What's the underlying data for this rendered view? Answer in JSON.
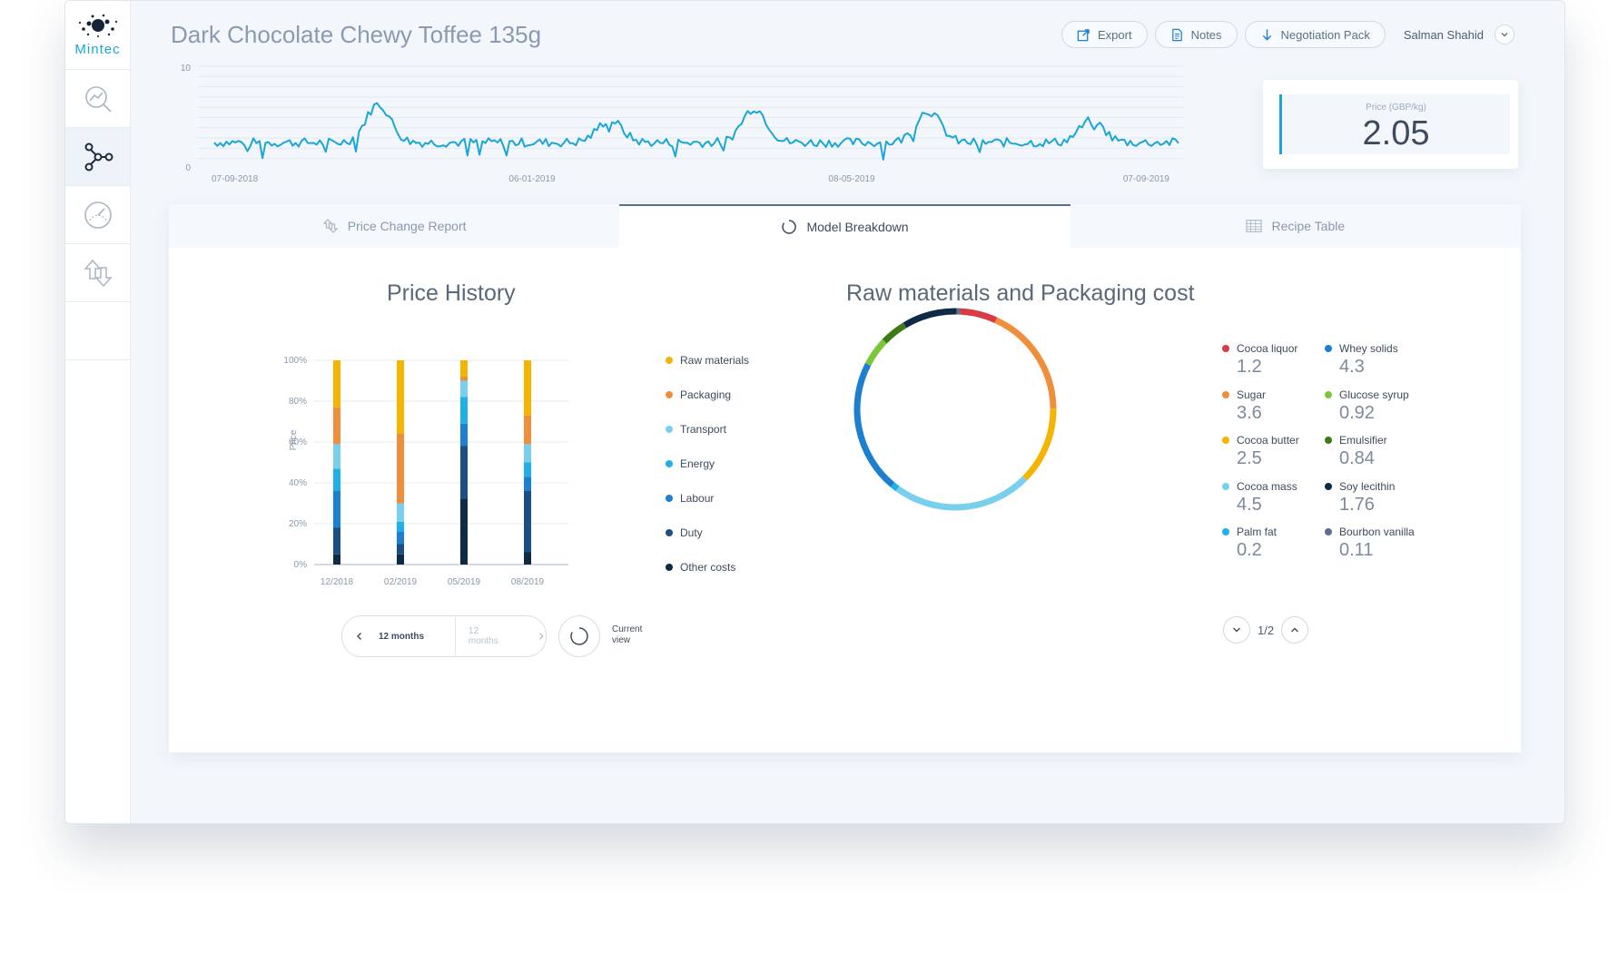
{
  "app": {
    "logo_text": "Mintec"
  },
  "header": {
    "title": "Dark Chocolate Chewy Toffee 135g",
    "buttons": {
      "export": "Export",
      "notes": "Notes",
      "negotiation": "Negotiation Pack"
    },
    "user": "Salman Shahid"
  },
  "sparkline": {
    "y_top": "10",
    "y_bottom": "0",
    "x_labels": [
      "07-09-2018",
      "06-01-2019",
      "08-05-2019",
      "07-09-2019"
    ],
    "color": "#1aa6d6"
  },
  "price_card": {
    "label": "Price (GBP/kg)",
    "value": "2.05"
  },
  "tabs": [
    {
      "label": "Price Change Report",
      "icon": "price-change-icon"
    },
    {
      "label": "Model Breakdown",
      "icon": "spinner-icon"
    },
    {
      "label": "Recipe Table",
      "icon": "table-icon"
    }
  ],
  "price_history": {
    "title": "Price History",
    "period_primary": "12 months",
    "period_secondary": "12 months",
    "current_view": "Current view",
    "legend": [
      {
        "name": "Raw materials",
        "color": "#f4b400"
      },
      {
        "name": "Packaging",
        "color": "#ef8f3c"
      },
      {
        "name": "Transport",
        "color": "#78d0ec"
      },
      {
        "name": "Energy",
        "color": "#1fb0e8"
      },
      {
        "name": "Labour",
        "color": "#1c7fcf"
      },
      {
        "name": "Duty",
        "color": "#1b4f82"
      },
      {
        "name": "Other costs",
        "color": "#0f2a45"
      }
    ]
  },
  "chart_data": [
    {
      "type": "bar",
      "stacked": true,
      "title": "Price History",
      "ylabel": "Price",
      "ylim": [
        0,
        100
      ],
      "y_ticks": [
        "0%",
        "20%",
        "40%",
        "60%",
        "80%",
        "100%"
      ],
      "categories": [
        "12/2018",
        "02/2019",
        "05/2019",
        "08/2019"
      ],
      "series": [
        {
          "name": "Other costs",
          "color": "#0f2a45",
          "values": [
            5,
            5,
            32,
            6
          ]
        },
        {
          "name": "Duty",
          "color": "#1b4f82",
          "values": [
            13,
            5,
            26,
            30
          ]
        },
        {
          "name": "Labour",
          "color": "#1c7fcf",
          "values": [
            18,
            6,
            11,
            7
          ]
        },
        {
          "name": "Energy",
          "color": "#1fb0e8",
          "values": [
            11,
            5,
            13,
            7
          ]
        },
        {
          "name": "Transport",
          "color": "#78d0ec",
          "values": [
            12,
            9,
            8,
            9
          ]
        },
        {
          "name": "Packaging",
          "color": "#ef8f3c",
          "values": [
            18,
            34,
            2,
            14
          ]
        },
        {
          "name": "Raw materials",
          "color": "#f4b400",
          "values": [
            23,
            36,
            8,
            27
          ]
        }
      ]
    },
    {
      "type": "pie",
      "donut": true,
      "title": "Raw materials and Packaging cost",
      "slices": [
        {
          "name": "Cocoa liquor",
          "value": 1.2,
          "color": "#d93a44"
        },
        {
          "name": "Sugar",
          "value": 3.6,
          "color": "#ef8f3c"
        },
        {
          "name": "Cocoa butter",
          "value": 2.5,
          "color": "#f4b400"
        },
        {
          "name": "Cocoa mass",
          "value": 4.5,
          "color": "#78d0ec"
        },
        {
          "name": "Palm fat",
          "value": 0.2,
          "color": "#1fb0e8"
        },
        {
          "name": "Whey solids",
          "value": 4.3,
          "color": "#1c7fcf"
        },
        {
          "name": "Glucose syrup",
          "value": 0.92,
          "color": "#7dc63b"
        },
        {
          "name": "Emulsifier",
          "value": 0.84,
          "color": "#3e7a16"
        },
        {
          "name": "Soy lecithin",
          "value": 1.76,
          "color": "#0f2a45"
        },
        {
          "name": "Bourbon vanilla",
          "value": 0.11,
          "color": "#5c6f8a"
        }
      ]
    }
  ],
  "materials": {
    "title": "Raw materials and Packaging cost",
    "items": [
      {
        "name": "Cocoa liquor",
        "value": "1.2",
        "color": "#d93a44"
      },
      {
        "name": "Whey solids",
        "value": "4.3",
        "color": "#1c7fcf"
      },
      {
        "name": "Sugar",
        "value": "3.6",
        "color": "#ef8f3c"
      },
      {
        "name": "Glucose syrup",
        "value": "0.92",
        "color": "#7dc63b"
      },
      {
        "name": "Cocoa butter",
        "value": "2.5",
        "color": "#f4b400"
      },
      {
        "name": "Emulsifier",
        "value": "0.84",
        "color": "#3e7a16"
      },
      {
        "name": "Cocoa mass",
        "value": "4.5",
        "color": "#78d0ec"
      },
      {
        "name": "Soy lecithin",
        "value": "1.76",
        "color": "#0f2a45"
      },
      {
        "name": "Palm fat",
        "value": "0.2",
        "color": "#1fb0e8"
      },
      {
        "name": "Bourbon vanilla",
        "value": "0.11",
        "color": "#5c6f8a"
      }
    ],
    "pager": "1/2"
  }
}
